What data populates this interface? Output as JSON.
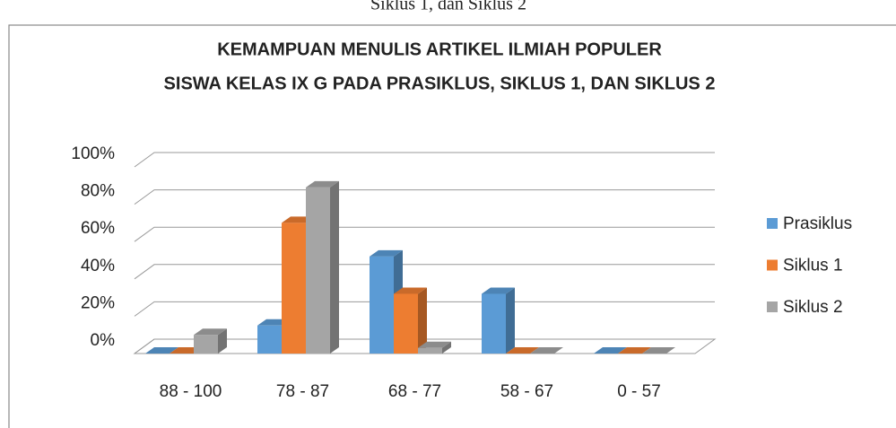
{
  "caption": "Siklus 1, dan Siklus 2",
  "chart_data": {
    "type": "bar3d",
    "title_lines": [
      "KEMAMPUAN MENULIS ARTIKEL ILMIAH POPULER",
      "SISWA KELAS IX G PADA PRASIKLUS, SIKLUS 1, DAN SIKLUS 2"
    ],
    "categories": [
      "88 - 100",
      "78 - 87",
      "68 - 77",
      "58 - 67",
      "0 - 57"
    ],
    "series": [
      {
        "name": "Prasiklus",
        "color": "#5b9bd5",
        "values": [
          0,
          15,
          52,
          32,
          0
        ]
      },
      {
        "name": "Siklus 1",
        "color": "#ed7d31",
        "values": [
          0,
          70,
          32,
          0,
          0
        ]
      },
      {
        "name": "Siklus 2",
        "color": "#a5a5a5",
        "values": [
          10,
          89,
          3,
          0,
          0
        ]
      }
    ],
    "ylim": [
      0,
      100
    ],
    "yticks": [
      {
        "value": 0,
        "label": "0%"
      },
      {
        "value": 20,
        "label": "20%"
      },
      {
        "value": 40,
        "label": "40%"
      },
      {
        "value": 60,
        "label": "60%"
      },
      {
        "value": 80,
        "label": "80%"
      },
      {
        "value": 100,
        "label": "100%"
      }
    ],
    "grid": true,
    "legend": "right"
  }
}
